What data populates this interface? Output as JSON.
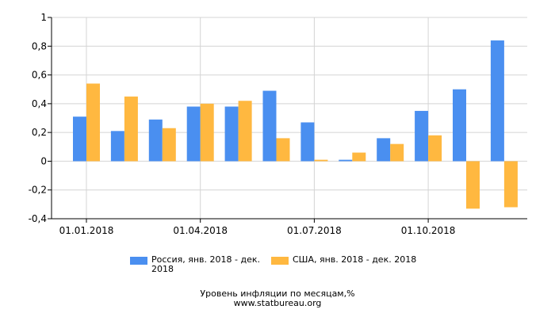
{
  "chart_data": {
    "type": "bar",
    "categories": [
      "янв 2018",
      "фев 2018",
      "мар 2018",
      "апр 2018",
      "май 2018",
      "июн 2018",
      "июл 2018",
      "авг 2018",
      "сен 2018",
      "окт 2018",
      "ноя 2018",
      "дек 2018"
    ],
    "series": [
      {
        "name": "Россия, янв. 2018 - дек. 2018",
        "color": "#4a8ff0",
        "values": [
          0.31,
          0.21,
          0.29,
          0.38,
          0.38,
          0.49,
          0.27,
          0.01,
          0.16,
          0.35,
          0.5,
          0.84
        ]
      },
      {
        "name": "США, янв. 2018 - дек. 2018",
        "color": "#ffb840",
        "values": [
          0.54,
          0.45,
          0.23,
          0.4,
          0.42,
          0.16,
          0.01,
          0.06,
          0.12,
          0.18,
          -0.33,
          -0.32
        ]
      }
    ],
    "xticks": [
      {
        "label": "01.01.2018",
        "index": 0
      },
      {
        "label": "01.04.2018",
        "index": 3
      },
      {
        "label": "01.07.2018",
        "index": 6
      },
      {
        "label": "01.10.2018",
        "index": 9
      }
    ],
    "yticks": [
      "1",
      "0,8",
      "0,6",
      "0,4",
      "0,2",
      "0",
      "-0,2",
      "-0,4"
    ],
    "ytick_values": [
      1,
      0.8,
      0.6,
      0.4,
      0.2,
      0,
      -0.2,
      -0.4
    ],
    "ylim": [
      -0.4,
      1
    ],
    "grid": true,
    "legend_position": "bottom",
    "title": "Уровень инфляции по месяцам,%",
    "source": "www.statbureau.org"
  },
  "legend": {
    "russia_label": "Россия, янв. 2018 - дек. 2018",
    "usa_label": "США, янв. 2018 - дек. 2018",
    "russia_color": "#4a8ff0",
    "usa_color": "#ffb840"
  },
  "footer": {
    "title": "Уровень инфляции по месяцам,%",
    "source": "www.statbureau.org"
  }
}
